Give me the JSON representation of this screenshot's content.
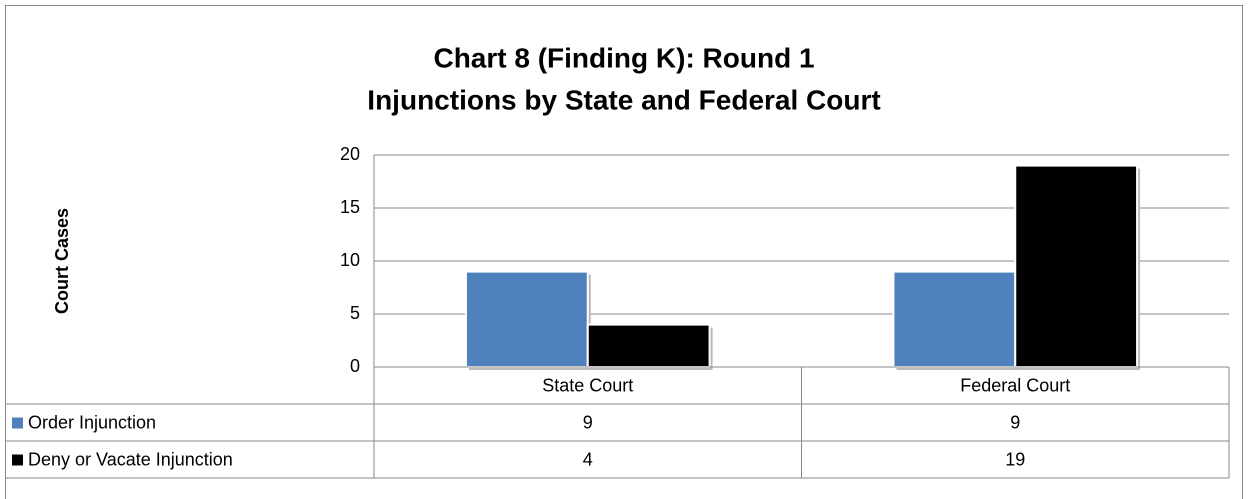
{
  "chart_data": {
    "type": "bar",
    "title": [
      "Chart 8 (Finding K): Round 1",
      "Injunctions by State and Federal Court"
    ],
    "y_label": "Court Cases",
    "categories": [
      "State Court",
      "Federal Court"
    ],
    "series": [
      {
        "name": "Order Injunction",
        "color": "#4f81bd",
        "values": [
          9,
          9
        ]
      },
      {
        "name": "Deny or Vacate Injunction",
        "color": "#000000",
        "values": [
          4,
          19
        ]
      }
    ],
    "ylim": [
      0,
      20
    ],
    "yticks": [
      0,
      5,
      10,
      15,
      20
    ],
    "grid": true,
    "data_table": true
  }
}
